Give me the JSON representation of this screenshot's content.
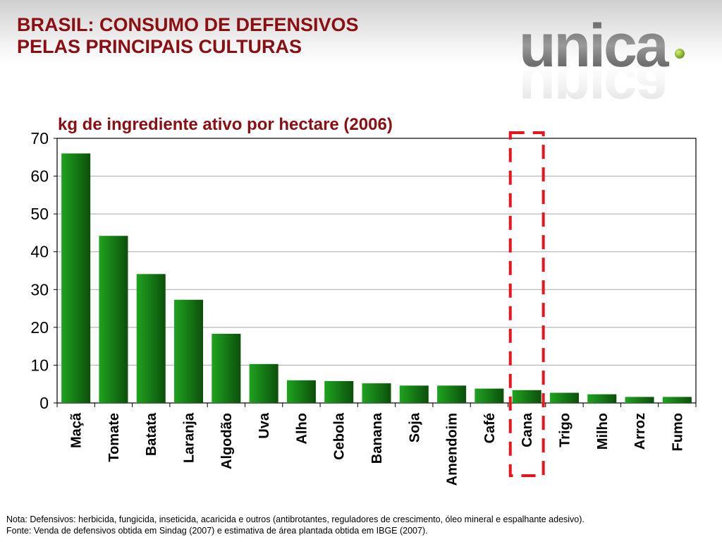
{
  "title": {
    "line1": "BRASIL: CONSUMO DE DEFENSIVOS",
    "line2": "PELAS PRINCIPAIS CULTURAS"
  },
  "logo": {
    "text": "unica"
  },
  "colors": {
    "title": "#8b0e12",
    "bar_light": "#1fa31f",
    "bar_dark": "#0b4f0b",
    "highlight": "#e8141b"
  },
  "chart_data": {
    "type": "bar",
    "title": "kg de ingrediente ativo por hectare (2006)",
    "xlabel": "",
    "ylabel": "",
    "ylim": [
      0,
      70
    ],
    "yticks": [
      0,
      10,
      20,
      30,
      40,
      50,
      60,
      70
    ],
    "grid": true,
    "categories": [
      "Maçã",
      "Tomate",
      "Batata",
      "Laranja",
      "Algodão",
      "Uva",
      "Alho",
      "Cebola",
      "Banana",
      "Soja",
      "Amendoim",
      "Café",
      "Cana",
      "Trigo",
      "Milho",
      "Arroz",
      "Fumo"
    ],
    "values": [
      66.0,
      44.2,
      34.1,
      27.3,
      18.3,
      10.3,
      6.0,
      5.8,
      5.2,
      4.6,
      4.6,
      3.8,
      3.4,
      2.7,
      2.3,
      1.6,
      1.6
    ],
    "highlight": "Cana"
  },
  "footnotes": {
    "nota": "Nota: Defensivos: herbicida, fungicida, inseticida, acaricida e outros (antibrotantes, reguladores de crescimento, óleo mineral e espalhante adesivo).",
    "fonte": "Fonte: Venda de defensivos obtida em Sindag (2007) e estimativa de área plantada obtida em IBGE (2007)."
  }
}
